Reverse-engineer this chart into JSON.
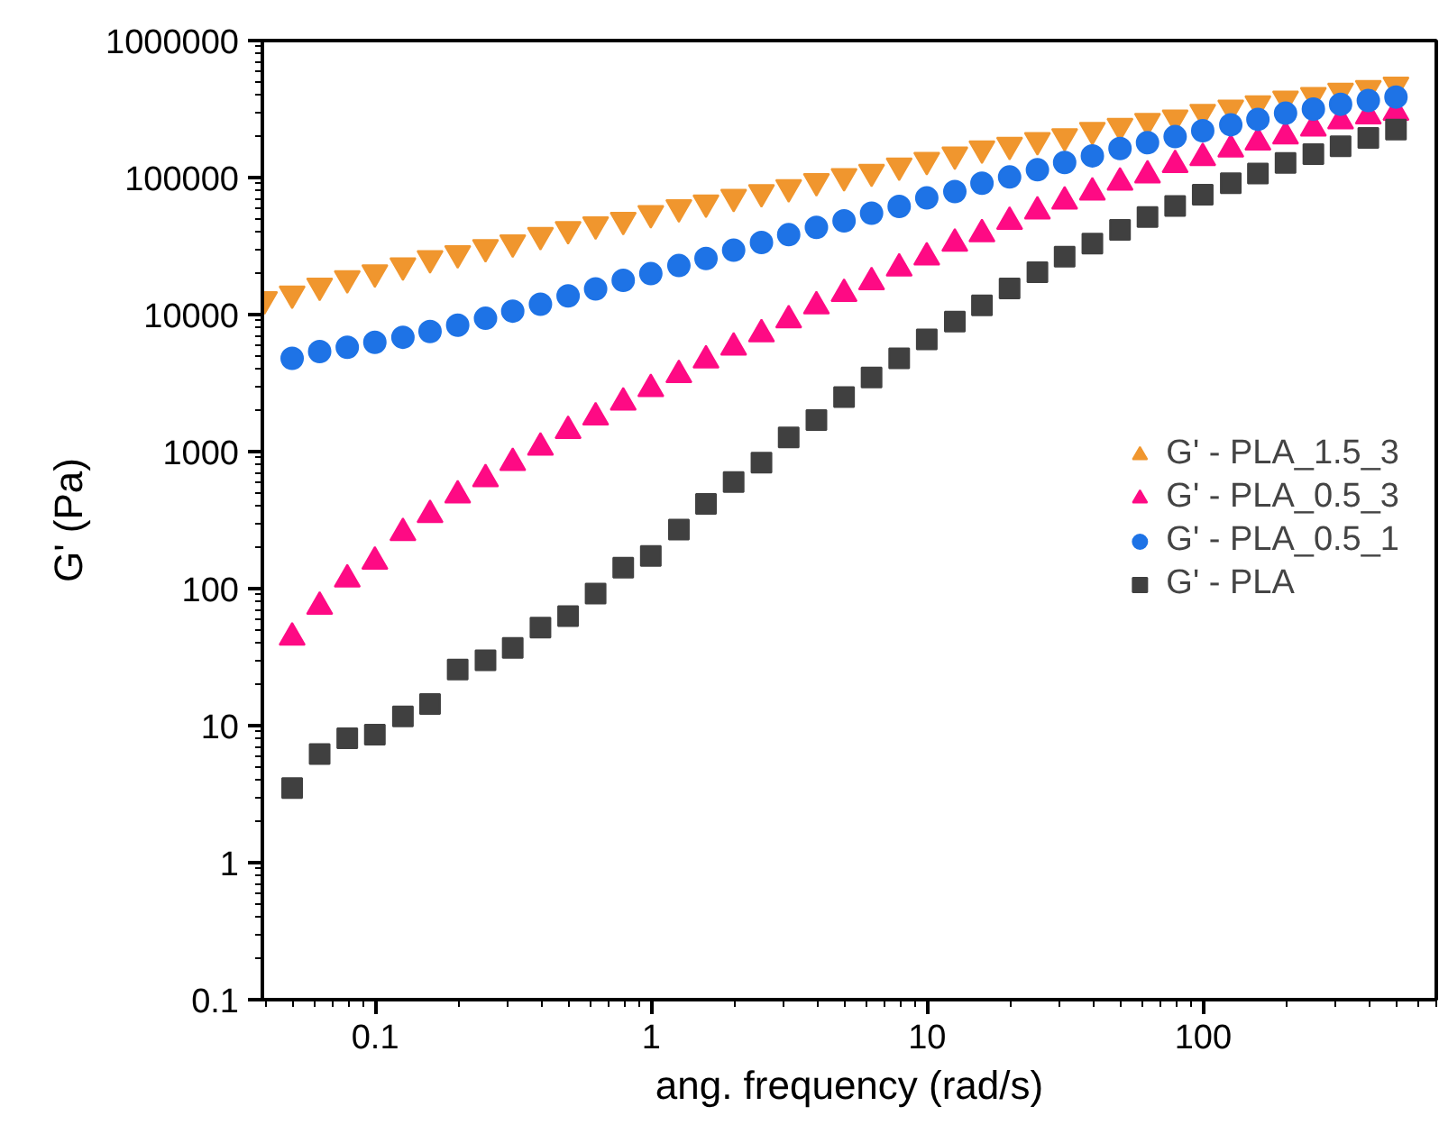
{
  "chart_data": {
    "type": "scatter",
    "xlabel": "ang. frequency (rad/s)",
    "ylabel": "G' (Pa)",
    "log": "xy",
    "grid": false,
    "legend": "right",
    "xlim": [
      0.039,
      700
    ],
    "ylim": [
      0.1,
      1000000
    ],
    "xticks": [
      0.1,
      1,
      10,
      100
    ],
    "yticks": [
      0.1,
      1,
      10,
      100,
      1000,
      10000,
      100000,
      1000000
    ],
    "x": [
      0.0397,
      0.05,
      0.0629,
      0.0792,
      0.0997,
      0.126,
      0.158,
      0.199,
      0.251,
      0.315,
      0.397,
      0.5,
      0.629,
      0.792,
      0.997,
      1.26,
      1.58,
      1.99,
      2.51,
      3.15,
      3.97,
      5,
      6.29,
      7.92,
      9.97,
      12.6,
      15.8,
      19.9,
      25.1,
      31.5,
      39.7,
      50,
      62.9,
      79.2,
      99.7,
      126,
      158,
      199,
      251,
      315,
      397,
      500
    ],
    "series": [
      {
        "name": "G' - PLA_1.5_3",
        "color": "#f0962e",
        "marker": "triangle",
        "values": [
          12900,
          14200,
          16200,
          18400,
          20300,
          22800,
          25700,
          28000,
          31000,
          33600,
          38000,
          41900,
          45500,
          49000,
          55000,
          60600,
          65500,
          72000,
          78000,
          85000,
          94000,
          102000,
          110000,
          122000,
          134000,
          147000,
          163000,
          173000,
          187000,
          200000,
          222000,
          238000,
          258000,
          274000,
          301000,
          323000,
          347000,
          376000,
          399000,
          430000,
          450000,
          475000
        ]
      },
      {
        "name": "G' - PLA_0.5_3",
        "color": "#fe0a84",
        "marker": "triangle",
        "values": [
          null,
          44,
          74,
          117,
          158,
          255,
          345,
          480,
          630,
          830,
          1070,
          1420,
          1780,
          2290,
          2870,
          3630,
          4640,
          5760,
          7200,
          9100,
          11500,
          14200,
          17300,
          21800,
          26200,
          33000,
          38700,
          47600,
          56800,
          67000,
          78000,
          92000,
          104000,
          124000,
          139000,
          161000,
          181000,
          200000,
          229000,
          258000,
          280000,
          298000
        ]
      },
      {
        "name": "G' - PLA_0.5_1",
        "color": "#1e73e6",
        "marker": "circle",
        "values": [
          null,
          4800,
          5370,
          5770,
          6270,
          6830,
          7520,
          8370,
          9400,
          10600,
          11900,
          13700,
          15400,
          17800,
          19900,
          22800,
          25700,
          29500,
          33600,
          38300,
          43300,
          48300,
          55000,
          61600,
          71000,
          79000,
          91000,
          101000,
          114000,
          129000,
          144000,
          163000,
          180000,
          199000,
          220000,
          243000,
          266000,
          295000,
          316000,
          343000,
          365000,
          387000
        ]
      },
      {
        "name": "G' - PLA",
        "color": "#404040",
        "marker": "square",
        "values": [
          null,
          3.5,
          6.2,
          8.1,
          8.6,
          11.7,
          14.4,
          25.7,
          30,
          37,
          52,
          63,
          92,
          142,
          173,
          270,
          415,
          600,
          830,
          1270,
          1700,
          2500,
          3470,
          4800,
          6600,
          8900,
          11700,
          15500,
          20400,
          26500,
          33000,
          41500,
          51500,
          62000,
          75000,
          91000,
          107000,
          128000,
          148000,
          169000,
          195000,
          224000
        ]
      }
    ]
  }
}
